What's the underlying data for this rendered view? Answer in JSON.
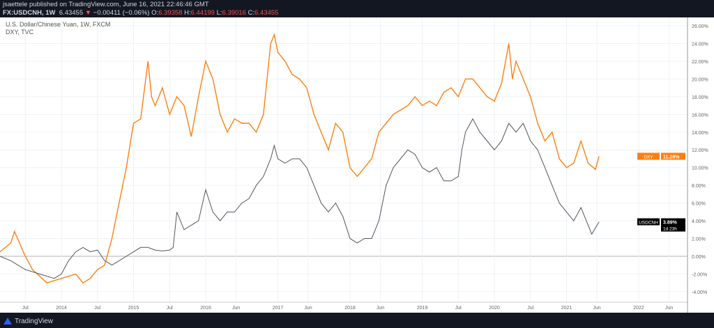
{
  "header": {
    "publisher": "jsaettele published on TradingView.com, June 16, 2021 22:46:46 GMT",
    "symbol": "FX:USDCNH, 1W",
    "last": "6.43455",
    "change": "−0.00411 (−0.06%)",
    "o_label": "O:",
    "o": "6.39358",
    "h_label": "H:",
    "h": "6.44199",
    "l_label": "L:",
    "l": "6.39016",
    "c_label": "C:",
    "c": "6.43455"
  },
  "legend": {
    "main": "U.S. Dollar/Chinese Yuan, 1W, FXCM",
    "compare": "DXY, TVC"
  },
  "footer": {
    "brand": "TradingView"
  },
  "colors": {
    "dxy": "#ff7f0e",
    "usdcnh": "#555555",
    "down": "#ef5350",
    "grid": "#eef2f7"
  },
  "chart_data": {
    "type": "line",
    "ylim": [
      -5,
      27
    ],
    "yticks": [
      "26.00%",
      "24.00%",
      "22.00%",
      "20.00%",
      "18.00%",
      "16.00%",
      "14.00%",
      "12.00%",
      "10.00%",
      "8.00%",
      "6.00%",
      "4.00%",
      "2.00%",
      "0.00%",
      "-2.00%",
      "-4.00%"
    ],
    "ytick_values": [
      26,
      24,
      22,
      20,
      18,
      16,
      14,
      12,
      10,
      8,
      6,
      4,
      2,
      0,
      -2,
      -4
    ],
    "xticks": [
      {
        "label": "Jul",
        "t": 2013.5
      },
      {
        "label": "2014",
        "t": 2014
      },
      {
        "label": "Jul",
        "t": 2014.5
      },
      {
        "label": "2015",
        "t": 2015
      },
      {
        "label": "Jul",
        "t": 2015.5
      },
      {
        "label": "2016",
        "t": 2016
      },
      {
        "label": "Jun",
        "t": 2016.42
      },
      {
        "label": "2017",
        "t": 2017
      },
      {
        "label": "Jun",
        "t": 2017.42
      },
      {
        "label": "2018",
        "t": 2018
      },
      {
        "label": "Jun",
        "t": 2018.42
      },
      {
        "label": "2019",
        "t": 2019
      },
      {
        "label": "Jul",
        "t": 2019.5
      },
      {
        "label": "2020",
        "t": 2020
      },
      {
        "label": "Jul",
        "t": 2020.5
      },
      {
        "label": "2021",
        "t": 2021
      },
      {
        "label": "Jun",
        "t": 2021.42
      },
      {
        "label": "2022",
        "t": 2022
      },
      {
        "label": "Jun",
        "t": 2022.42
      }
    ],
    "series": [
      {
        "name": "DXY",
        "last_label": "11.28%",
        "x": [
          2013.15,
          2013.3,
          2013.35,
          2013.5,
          2013.6,
          2013.8,
          2014.0,
          2014.2,
          2014.3,
          2014.4,
          2014.5,
          2014.6,
          2014.7,
          2014.8,
          2014.9,
          2015.0,
          2015.1,
          2015.2,
          2015.25,
          2015.3,
          2015.4,
          2015.5,
          2015.6,
          2015.7,
          2015.8,
          2015.9,
          2016.0,
          2016.1,
          2016.2,
          2016.3,
          2016.4,
          2016.5,
          2016.6,
          2016.7,
          2016.8,
          2016.9,
          2016.95,
          2017.0,
          2017.1,
          2017.2,
          2017.3,
          2017.4,
          2017.5,
          2017.6,
          2017.7,
          2017.8,
          2017.9,
          2018.0,
          2018.1,
          2018.2,
          2018.3,
          2018.4,
          2018.5,
          2018.6,
          2018.7,
          2018.8,
          2018.9,
          2019.0,
          2019.1,
          2019.2,
          2019.3,
          2019.4,
          2019.5,
          2019.6,
          2019.7,
          2019.8,
          2019.9,
          2020.0,
          2020.1,
          2020.2,
          2020.25,
          2020.3,
          2020.4,
          2020.5,
          2020.6,
          2020.7,
          2020.8,
          2020.9,
          2021.0,
          2021.1,
          2021.2,
          2021.3,
          2021.4,
          2021.45
        ],
        "y": [
          0.5,
          1.5,
          2.8,
          0,
          -1.5,
          -3,
          -2.5,
          -2,
          -3,
          -2.5,
          -1.5,
          -1,
          2,
          6,
          10,
          15,
          15.5,
          22,
          18,
          17,
          19,
          16,
          18,
          17,
          13.5,
          18,
          22,
          20,
          16,
          14,
          15.5,
          15,
          15,
          14,
          16,
          24,
          25,
          23,
          22,
          20.5,
          20,
          19,
          16,
          14,
          12,
          15,
          14,
          10,
          9,
          10,
          11,
          14,
          15,
          16,
          16.5,
          17,
          18,
          17,
          17.5,
          17,
          18.5,
          19,
          18,
          20,
          20,
          19,
          18,
          17.5,
          19.5,
          24,
          20,
          22,
          20,
          18,
          15,
          13,
          14,
          11,
          10,
          10.5,
          13,
          10.5,
          9.8,
          11.28
        ]
      },
      {
        "name": "USDCNH",
        "last_label": "3.89%",
        "countdown": "1d 23h",
        "x": [
          2013.15,
          2013.3,
          2013.5,
          2013.7,
          2013.9,
          2014.0,
          2014.1,
          2014.2,
          2014.3,
          2014.4,
          2014.5,
          2014.6,
          2014.7,
          2014.8,
          2014.9,
          2015.0,
          2015.1,
          2015.2,
          2015.3,
          2015.4,
          2015.5,
          2015.55,
          2015.6,
          2015.7,
          2015.8,
          2015.9,
          2016.0,
          2016.1,
          2016.2,
          2016.3,
          2016.4,
          2016.5,
          2016.6,
          2016.7,
          2016.8,
          2016.9,
          2016.95,
          2017.0,
          2017.1,
          2017.2,
          2017.3,
          2017.4,
          2017.5,
          2017.6,
          2017.7,
          2017.8,
          2017.9,
          2018.0,
          2018.1,
          2018.2,
          2018.3,
          2018.4,
          2018.5,
          2018.6,
          2018.7,
          2018.8,
          2018.9,
          2019.0,
          2019.1,
          2019.2,
          2019.3,
          2019.4,
          2019.5,
          2019.55,
          2019.6,
          2019.7,
          2019.8,
          2019.9,
          2020.0,
          2020.1,
          2020.2,
          2020.3,
          2020.4,
          2020.5,
          2020.6,
          2020.7,
          2020.8,
          2020.9,
          2021.0,
          2021.1,
          2021.2,
          2021.3,
          2021.35,
          2021.45
        ],
        "y": [
          0,
          -0.5,
          -1.5,
          -2,
          -2.5,
          -2,
          -0.5,
          0.5,
          1,
          0.5,
          0.7,
          -0.5,
          -1,
          -0.5,
          0,
          0.5,
          1,
          1,
          0.7,
          0.6,
          0.7,
          1,
          5,
          3,
          3.5,
          4,
          7.5,
          5,
          4,
          5,
          5,
          6,
          6.5,
          8,
          9,
          11,
          12.5,
          11,
          10.5,
          11,
          11,
          10,
          8,
          6,
          5,
          6,
          4.5,
          2,
          1.5,
          2,
          2,
          4,
          8,
          10,
          11,
          12,
          11.5,
          10,
          9.5,
          10,
          8.5,
          8.5,
          9,
          12,
          14,
          15.5,
          14,
          13,
          12,
          13,
          15,
          14,
          15,
          13,
          12,
          10,
          8,
          6,
          5,
          4,
          5.5,
          3.5,
          2.5,
          3.89
        ]
      }
    ]
  }
}
